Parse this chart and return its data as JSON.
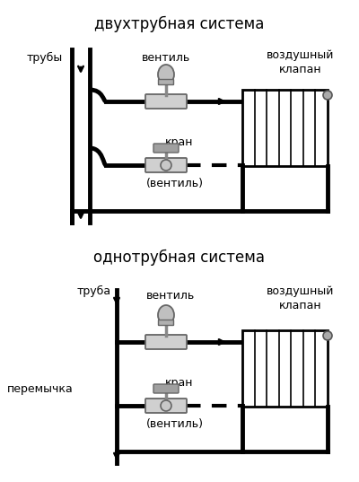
{
  "title1": "двухтрубная система",
  "title2": "однотрубная система",
  "bg_color": "#ffffff",
  "line_color": "#000000",
  "line_width": 3.5,
  "label_трубы": "трубы",
  "label_вентиль1": "вентиль",
  "label_воздушный1": "воздушный\nклапан",
  "label_кран1": "кран",
  "label_вентиль_скобки1": "(вентиль)",
  "label_труба": "труба",
  "label_вентиль2": "вентиль",
  "label_воздушный2": "воздушный\nклапан",
  "label_кран2": "кран",
  "label_вентиль_скобки2": "(вентиль)",
  "label_перемычка": "перемычка"
}
